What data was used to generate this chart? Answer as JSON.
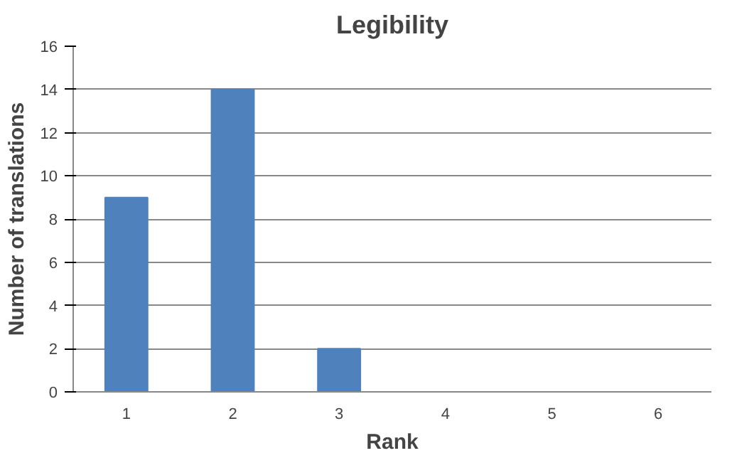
{
  "chart_data": {
    "type": "bar",
    "title": "Legibility",
    "xlabel": "Rank",
    "ylabel": "Number of translations",
    "categories": [
      "1",
      "2",
      "3",
      "4",
      "5",
      "6"
    ],
    "values": [
      9,
      14,
      2,
      0,
      0,
      0
    ],
    "color": "#4f81bd",
    "ylim": [
      0,
      16
    ],
    "yticks": [
      0,
      2,
      4,
      6,
      8,
      10,
      12,
      14,
      16
    ],
    "grid": "y"
  }
}
